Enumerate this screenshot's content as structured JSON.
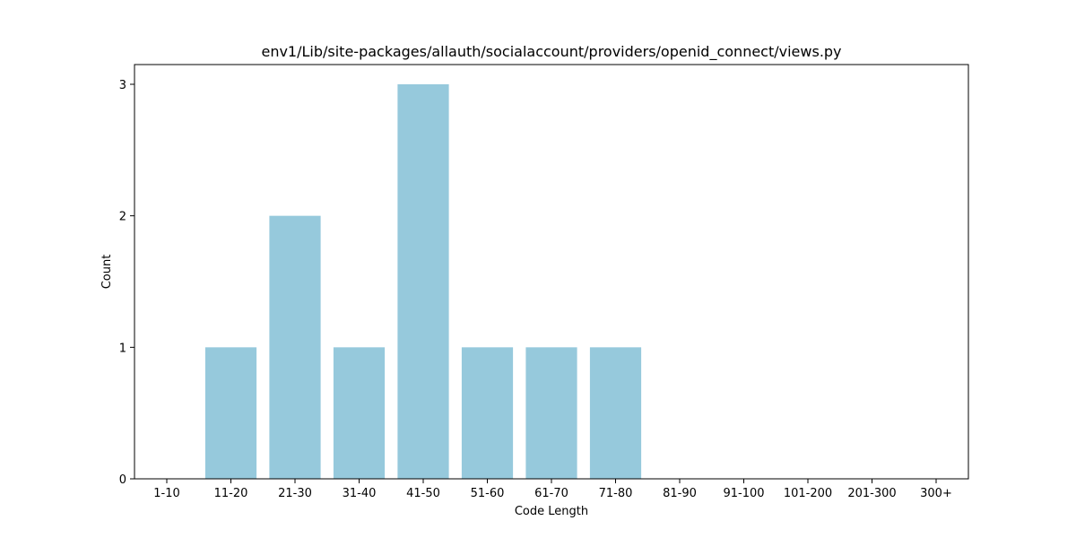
{
  "chart_data": {
    "type": "bar",
    "title": "env1/Lib/site-packages/allauth/socialaccount/providers/openid_connect/views.py",
    "xlabel": "Code Length",
    "ylabel": "Count",
    "categories": [
      "1-10",
      "11-20",
      "21-30",
      "31-40",
      "41-50",
      "51-60",
      "61-70",
      "71-80",
      "81-90",
      "91-100",
      "101-200",
      "201-300",
      "300+"
    ],
    "values": [
      0,
      1,
      2,
      1,
      3,
      1,
      1,
      1,
      0,
      0,
      0,
      0,
      0
    ],
    "ylim": [
      0,
      3.15
    ],
    "yticks": [
      0,
      1,
      2,
      3
    ],
    "grid": false,
    "bar_color": "#96c9dc"
  }
}
